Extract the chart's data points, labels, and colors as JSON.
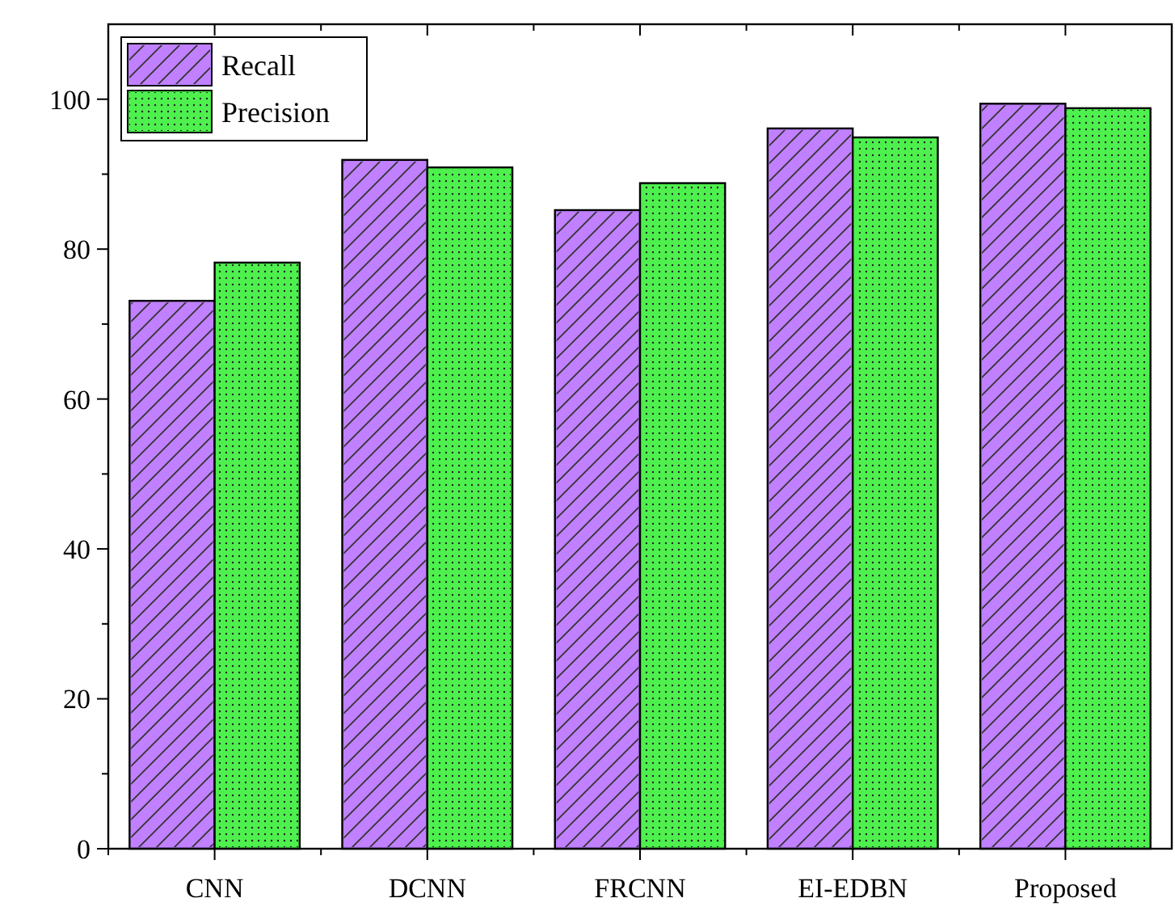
{
  "chart_data": {
    "type": "bar",
    "categories": [
      "CNN",
      "DCNN",
      "FRCNN",
      "EI-EDBN",
      "Proposed"
    ],
    "series": [
      {
        "name": "Recall",
        "color": "#c080ff",
        "values": [
          73.1,
          91.9,
          85.2,
          96.1,
          99.4
        ]
      },
      {
        "name": "Precision",
        "color": "#4ef04e",
        "values": [
          78.2,
          90.9,
          88.8,
          94.9,
          98.8
        ]
      }
    ],
    "ylim": [
      0,
      110
    ],
    "yticks": [
      0,
      20,
      40,
      60,
      80,
      100
    ],
    "grid": false,
    "legend": "top left"
  }
}
